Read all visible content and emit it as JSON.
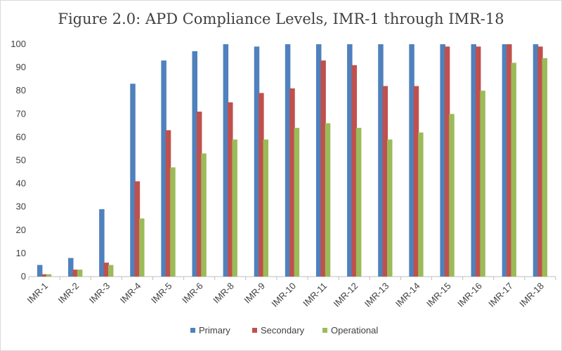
{
  "chart_data": {
    "type": "bar",
    "title": "Figure 2.0: APD Compliance Levels, IMR-1 through IMR-18",
    "xlabel": "",
    "ylabel": "",
    "ylim": [
      0,
      100
    ],
    "yticks": [
      0,
      10,
      20,
      30,
      40,
      50,
      60,
      70,
      80,
      90,
      100
    ],
    "grid": false,
    "legend_position": "bottom",
    "categories": [
      "IMR-1",
      "IMR-2",
      "IMR-3",
      "IMR-4",
      "IMR-5",
      "IMR-6",
      "IMR-8",
      "IMR-9",
      "IMR-10",
      "IMR-11",
      "IMR-12",
      "IMR-13",
      "IMR-14",
      "IMR-15",
      "IMR-16",
      "IMR-17",
      "IMR-18"
    ],
    "series": [
      {
        "name": "Primary",
        "color": "#4f81bd",
        "values": [
          5,
          8,
          29,
          83,
          93,
          97,
          100,
          99,
          100,
          100,
          100,
          100,
          100,
          100,
          100,
          100,
          100
        ]
      },
      {
        "name": "Secondary",
        "color": "#c0504d",
        "values": [
          1,
          3,
          6,
          41,
          63,
          71,
          75,
          79,
          81,
          93,
          91,
          82,
          82,
          99,
          99,
          100,
          99
        ]
      },
      {
        "name": "Operational",
        "color": "#9bbb59",
        "values": [
          1,
          3,
          5,
          25,
          47,
          53,
          59,
          59,
          64,
          66,
          64,
          59,
          62,
          70,
          80,
          92,
          94
        ]
      }
    ]
  }
}
